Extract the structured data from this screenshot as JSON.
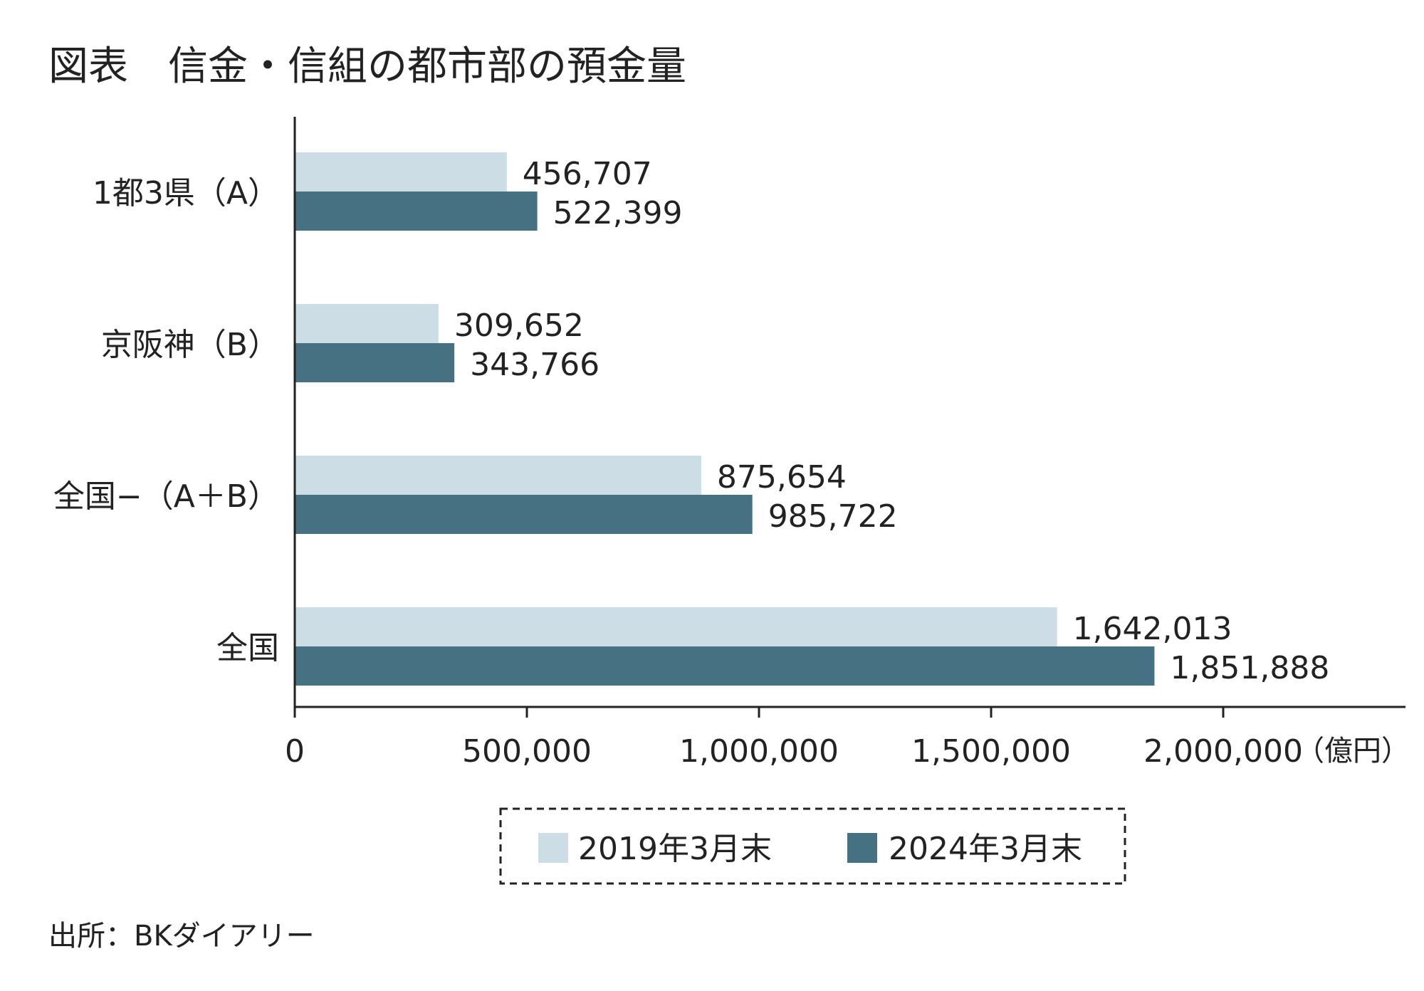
{
  "chart_data": {
    "type": "bar",
    "orientation": "horizontal",
    "title": "図表　信金・信組の都市部の預金量",
    "categories": [
      "1都3県（A）",
      "京阪神（B）",
      "全国−（A＋B）",
      "全国"
    ],
    "series": [
      {
        "name": "2019年3月末",
        "color": "#cddde6",
        "values": [
          456707,
          309652,
          875654,
          1642013
        ],
        "labels": [
          "456,707",
          "309,652",
          "875,654",
          "1,642,013"
        ]
      },
      {
        "name": "2024年3月末",
        "color": "#467183",
        "values": [
          522399,
          343766,
          985722,
          1851888
        ],
        "labels": [
          "522,399",
          "343,766",
          "985,722",
          "1,851,888"
        ]
      }
    ],
    "xlim": [
      0,
      2000000
    ],
    "xticks": [
      0,
      500000,
      1000000,
      1500000,
      2000000
    ],
    "xtick_labels": [
      "0",
      "500,000",
      "1,000,000",
      "1,500,000",
      "2,000,000"
    ],
    "unit": "（億円）",
    "grid": false,
    "legend_position": "bottom-center",
    "source": "出所：BKダイアリー"
  }
}
